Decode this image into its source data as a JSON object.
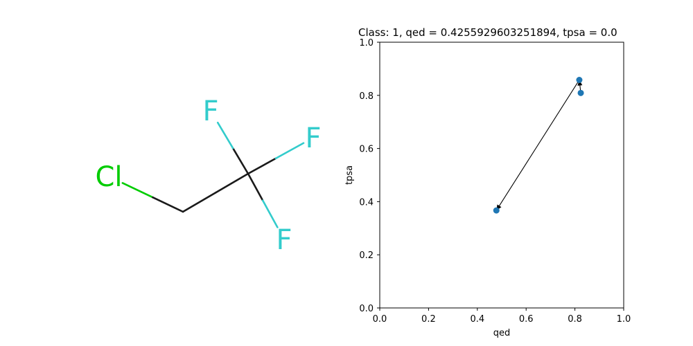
{
  "molecule": {
    "atoms": [
      {
        "id": "cl",
        "label": "Cl",
        "color": "#00cc00"
      },
      {
        "id": "c1",
        "label": "",
        "color": "#1a1a1a"
      },
      {
        "id": "c2",
        "label": "",
        "color": "#1a1a1a"
      },
      {
        "id": "f1",
        "label": "F",
        "color": "#33cccc"
      },
      {
        "id": "f2",
        "label": "F",
        "color": "#33cccc"
      },
      {
        "id": "f3",
        "label": "F",
        "color": "#33cccc"
      }
    ],
    "bonds": [
      [
        "cl",
        "c1"
      ],
      [
        "c1",
        "c2"
      ],
      [
        "c2",
        "f1"
      ],
      [
        "c2",
        "f2"
      ],
      [
        "c2",
        "f3"
      ]
    ],
    "bond_color": "#1a1a1a"
  },
  "chart_data": {
    "type": "scatter",
    "title": "Class: 1, qed = 0.4255929603251894, tpsa = 0.0",
    "xlabel": "qed",
    "ylabel": "tpsa",
    "xlim": [
      0.0,
      1.0
    ],
    "ylim": [
      0.0,
      1.0
    ],
    "xticks": [
      "0.0",
      "0.2",
      "0.4",
      "0.6",
      "0.8",
      "1.0"
    ],
    "yticks": [
      "0.0",
      "0.2",
      "0.4",
      "0.6",
      "0.8",
      "1.0"
    ],
    "points": [
      {
        "x": 0.478,
        "y": 0.367
      },
      {
        "x": 0.818,
        "y": 0.858
      },
      {
        "x": 0.824,
        "y": 0.809
      }
    ],
    "arrows": [
      {
        "from": 1,
        "to": 0
      },
      {
        "from": 2,
        "to": 1
      }
    ],
    "marker_color": "#1f77b4",
    "grid": false
  }
}
